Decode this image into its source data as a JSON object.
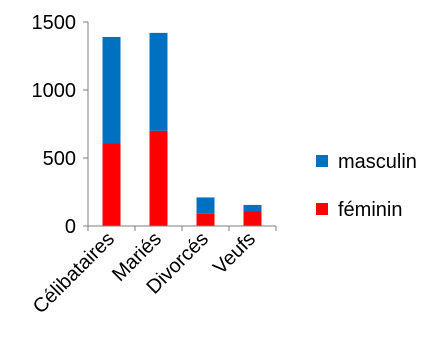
{
  "chart_data": {
    "type": "bar",
    "stacked": true,
    "categories": [
      "Célibataires",
      "Mariés",
      "Divorcés",
      "Veufs"
    ],
    "series": [
      {
        "name": "féminin",
        "values": [
          610,
          700,
          90,
          110
        ],
        "color": "#ff0000"
      },
      {
        "name": "masculin",
        "values": [
          780,
          720,
          120,
          45
        ],
        "color": "#0070c0"
      }
    ],
    "ylim": [
      0,
      1500
    ],
    "yticks": [
      "0",
      "500",
      "1000",
      "1500"
    ],
    "grid": false,
    "legend": {
      "position": "right",
      "order": [
        "masculin",
        "féminin"
      ]
    }
  }
}
